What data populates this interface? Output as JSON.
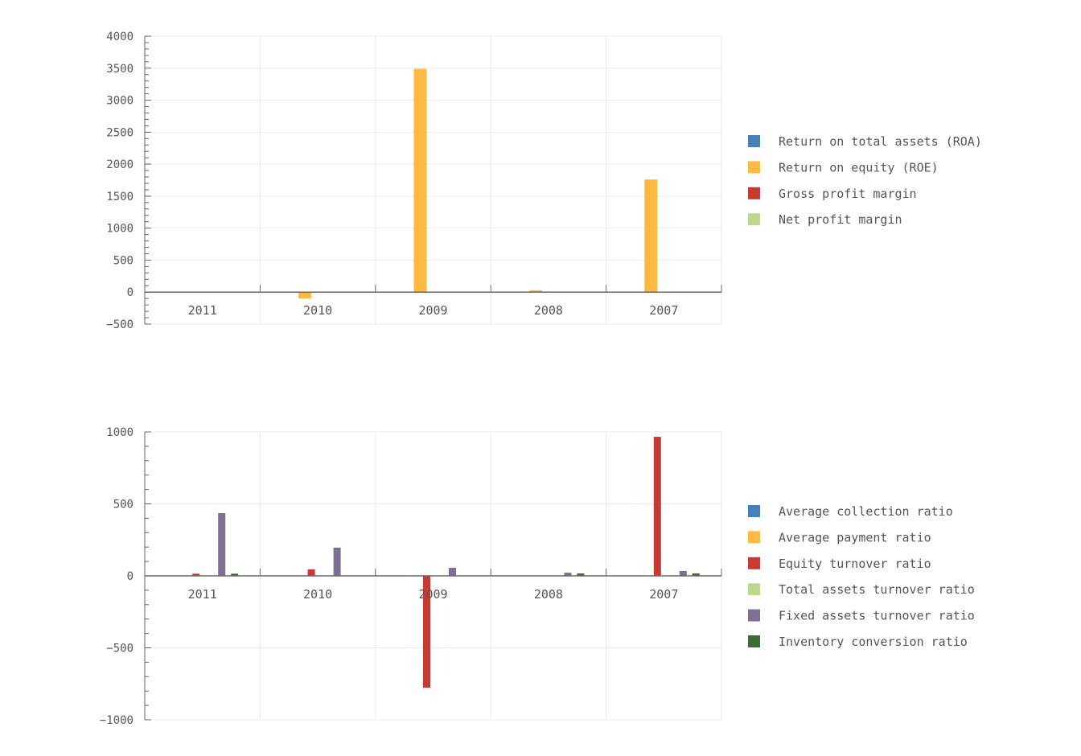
{
  "chart_data": [
    {
      "type": "bar",
      "categories": [
        "2011",
        "2010",
        "2009",
        "2008",
        "2007"
      ],
      "ylim": [
        -500,
        4000
      ],
      "yticks": [
        -500,
        0,
        500,
        1000,
        1500,
        2000,
        2500,
        3000,
        3500,
        4000
      ],
      "grid": true,
      "legend_placement": "right",
      "series": [
        {
          "name": "Return on total assets (ROA)",
          "color": "#4a7fb5",
          "values": [
            0,
            0,
            0,
            0,
            0
          ]
        },
        {
          "name": "Return on equity (ROE)",
          "color": "#ffb840",
          "values": [
            0,
            -100,
            3490,
            30,
            1760
          ]
        },
        {
          "name": "Gross profit margin",
          "color": "#c8392f",
          "values": [
            0,
            0,
            0,
            0,
            0
          ]
        },
        {
          "name": "Net profit margin",
          "color": "#bcd88c",
          "values": [
            0,
            0,
            0,
            0,
            0
          ]
        }
      ]
    },
    {
      "type": "bar",
      "categories": [
        "2011",
        "2010",
        "2009",
        "2008",
        "2007"
      ],
      "ylim": [
        -1000,
        1000
      ],
      "yticks": [
        -1000,
        -500,
        0,
        500,
        1000
      ],
      "grid": true,
      "legend_placement": "right",
      "series": [
        {
          "name": "Average collection ratio",
          "color": "#4a7fb5",
          "values": [
            0,
            0,
            0,
            0,
            0
          ]
        },
        {
          "name": "Average payment ratio",
          "color": "#ffb840",
          "values": [
            0,
            0,
            0,
            0,
            0
          ]
        },
        {
          "name": "Equity turnover ratio",
          "color": "#c8392f",
          "values": [
            15,
            45,
            -777,
            0,
            966
          ]
        },
        {
          "name": "Total assets turnover ratio",
          "color": "#bcd88c",
          "values": [
            0,
            0,
            0,
            0,
            0
          ]
        },
        {
          "name": "Fixed assets turnover ratio",
          "color": "#7f6f94",
          "values": [
            436,
            196,
            56,
            22,
            34
          ]
        },
        {
          "name": "Inventory conversion ratio",
          "color": "#3f6a3a",
          "values": [
            15,
            0,
            0,
            17,
            17
          ]
        }
      ]
    }
  ]
}
